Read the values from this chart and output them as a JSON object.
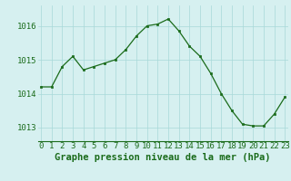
{
  "x": [
    0,
    1,
    2,
    3,
    4,
    5,
    6,
    7,
    8,
    9,
    10,
    11,
    12,
    13,
    14,
    15,
    16,
    17,
    18,
    19,
    20,
    21,
    22,
    23
  ],
  "y": [
    1014.2,
    1014.2,
    1014.8,
    1015.1,
    1014.7,
    1014.8,
    1014.9,
    1015.0,
    1015.3,
    1015.7,
    1016.0,
    1016.05,
    1016.2,
    1015.85,
    1015.4,
    1015.1,
    1014.6,
    1014.0,
    1013.5,
    1013.1,
    1013.05,
    1013.05,
    1013.4,
    1013.9
  ],
  "line_color": "#1a6b1a",
  "marker_color": "#1a6b1a",
  "bg_color": "#d6f0f0",
  "grid_color": "#a8d8d8",
  "title": "Graphe pression niveau de la mer (hPa)",
  "ylim": [
    1012.6,
    1016.6
  ],
  "yticks": [
    1013,
    1014,
    1015,
    1016
  ],
  "xticks": [
    0,
    1,
    2,
    3,
    4,
    5,
    6,
    7,
    8,
    9,
    10,
    11,
    12,
    13,
    14,
    15,
    16,
    17,
    18,
    19,
    20,
    21,
    22,
    23
  ],
  "xlim": [
    -0.3,
    23.3
  ],
  "title_fontsize": 7.5,
  "tick_fontsize": 6.5
}
